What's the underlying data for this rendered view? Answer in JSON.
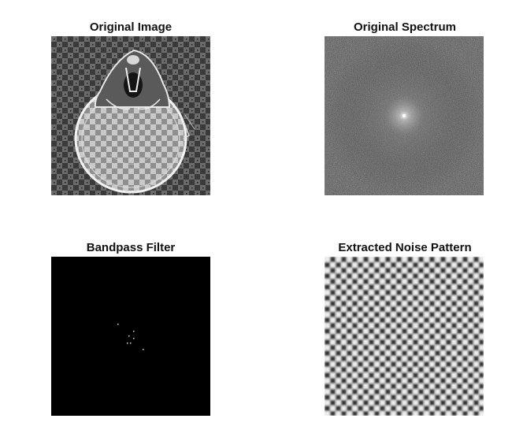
{
  "figure": {
    "panels": [
      {
        "id": "original-image",
        "title": "Original Image"
      },
      {
        "id": "original-spectrum",
        "title": "Original Spectrum"
      },
      {
        "id": "bandpass-filter",
        "title": "Bandpass Filter"
      },
      {
        "id": "extracted-noise-pattern",
        "title": "Extracted Noise Pattern"
      }
    ]
  },
  "colors": {
    "background": "#ffffff",
    "title_text": "#111111",
    "panel_dark": "#000000",
    "spectrum_gray": "#5a5a5a"
  }
}
